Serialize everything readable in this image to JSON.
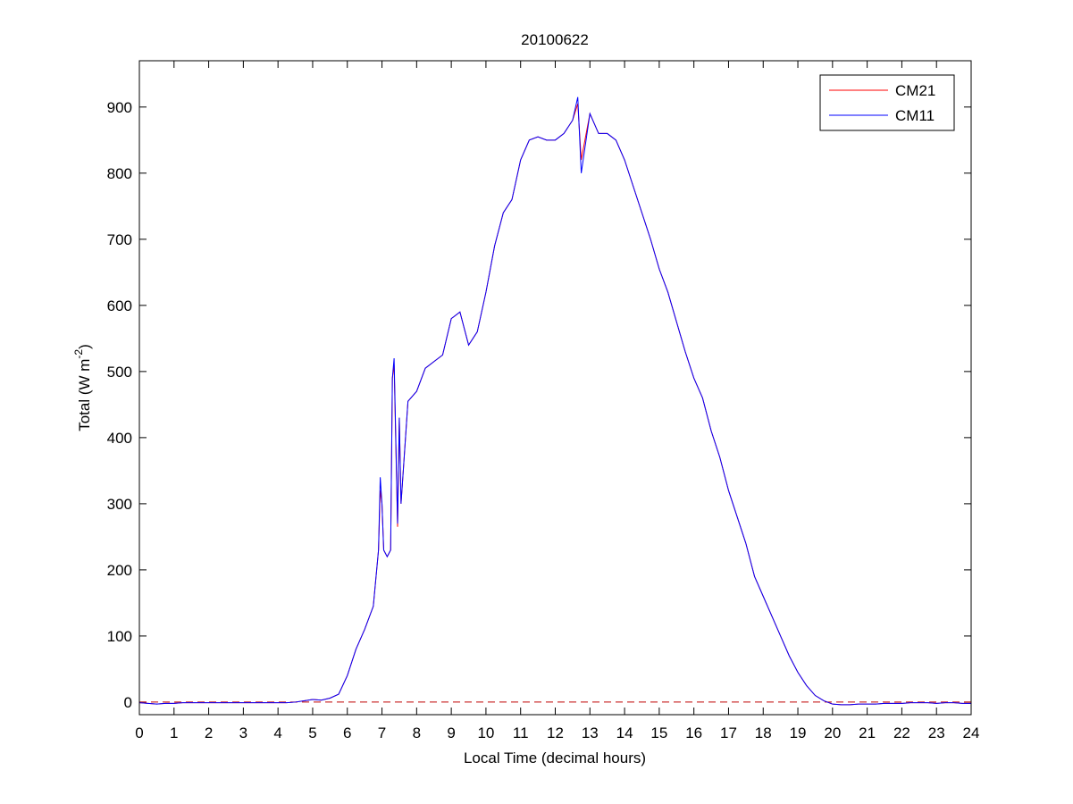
{
  "chart_data": {
    "type": "line",
    "title": "20100622",
    "x_label": "Local Time (decimal hours)",
    "y_label_parts": [
      "Total (W m",
      "-2",
      ")"
    ],
    "x": [
      0,
      0.25,
      0.5,
      0.75,
      1,
      1.25,
      1.5,
      1.75,
      2,
      2.25,
      2.5,
      2.75,
      3,
      3.25,
      3.5,
      3.75,
      4,
      4.25,
      4.5,
      4.75,
      5,
      5.25,
      5.5,
      5.75,
      6,
      6.25,
      6.5,
      6.75,
      6.9,
      6.95,
      7,
      7.05,
      7.15,
      7.25,
      7.3,
      7.35,
      7.45,
      7.5,
      7.55,
      7.75,
      8,
      8.25,
      8.5,
      8.75,
      9,
      9.25,
      9.5,
      9.75,
      10,
      10.25,
      10.5,
      10.75,
      11,
      11.25,
      11.5,
      11.75,
      12,
      12.25,
      12.5,
      12.65,
      12.75,
      13,
      13.25,
      13.5,
      13.75,
      14,
      14.25,
      14.5,
      14.75,
      15,
      15.25,
      15.5,
      15.75,
      16,
      16.25,
      16.5,
      16.75,
      17,
      17.25,
      17.5,
      17.75,
      18,
      18.25,
      18.5,
      18.75,
      19,
      19.25,
      19.5,
      19.75,
      20,
      20.25,
      20.5,
      20.75,
      21,
      21.25,
      21.5,
      21.75,
      22,
      22.25,
      22.5,
      22.75,
      23,
      23.25,
      23.5,
      23.75,
      24
    ],
    "series": [
      {
        "name": "CM21",
        "color": "#ff0000",
        "values": [
          -1,
          -2,
          -3,
          -2,
          -2,
          -1,
          -1,
          -1,
          -1,
          -1,
          -1,
          -1,
          -1,
          -1,
          -1,
          -1,
          -1,
          -1,
          0,
          2,
          4,
          3,
          6,
          12,
          40,
          80,
          110,
          145,
          230,
          320,
          300,
          230,
          220,
          230,
          490,
          510,
          265,
          430,
          300,
          455,
          470,
          505,
          515,
          525,
          580,
          590,
          540,
          560,
          620,
          690,
          740,
          760,
          820,
          850,
          855,
          850,
          850,
          860,
          880,
          905,
          820,
          890,
          860,
          860,
          850,
          820,
          780,
          740,
          700,
          655,
          620,
          575,
          530,
          490,
          460,
          410,
          370,
          320,
          280,
          240,
          190,
          160,
          130,
          100,
          70,
          45,
          25,
          10,
          2,
          -3,
          -4,
          -4,
          -3,
          -3,
          -3,
          -2,
          -2,
          -2,
          -1,
          -1,
          -1,
          -2,
          -1,
          -1,
          -2,
          -2
        ]
      },
      {
        "name": "CM11",
        "color": "#0000ff",
        "values": [
          -1,
          -2,
          -3,
          -2,
          -2,
          -1,
          -1,
          -1,
          -1,
          -1,
          -1,
          -1,
          -1,
          -1,
          -1,
          -1,
          -1,
          -1,
          0,
          2,
          4,
          3,
          6,
          12,
          40,
          80,
          110,
          145,
          230,
          340,
          300,
          230,
          220,
          230,
          490,
          520,
          270,
          430,
          300,
          455,
          470,
          505,
          515,
          525,
          580,
          590,
          540,
          560,
          620,
          690,
          740,
          760,
          820,
          850,
          855,
          850,
          850,
          860,
          880,
          915,
          800,
          890,
          860,
          860,
          850,
          820,
          780,
          740,
          700,
          655,
          620,
          575,
          530,
          490,
          460,
          410,
          370,
          320,
          280,
          240,
          190,
          160,
          130,
          100,
          70,
          45,
          25,
          10,
          2,
          -3,
          -4,
          -4,
          -3,
          -3,
          -3,
          -2,
          -2,
          -2,
          -1,
          -1,
          -1,
          -2,
          -1,
          -1,
          -2,
          -2
        ]
      }
    ],
    "reference_line": {
      "value": 0,
      "color": "#c00000"
    },
    "xlim": [
      0,
      24
    ],
    "xticks": [
      0,
      1,
      2,
      3,
      4,
      5,
      6,
      7,
      8,
      9,
      10,
      11,
      12,
      13,
      14,
      15,
      16,
      17,
      18,
      19,
      20,
      21,
      22,
      23,
      24
    ],
    "ylim": [
      -19,
      970
    ],
    "yticks": [
      0,
      100,
      200,
      300,
      400,
      500,
      600,
      700,
      800,
      900
    ],
    "legend": "top-right"
  }
}
